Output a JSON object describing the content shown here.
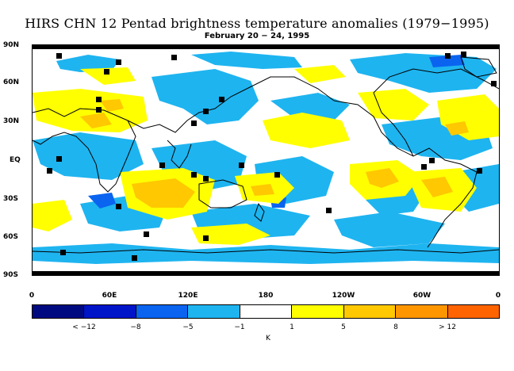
{
  "title": "HIRS CHN 12 Pentad brightness temperature anomalies (1979−1995)",
  "subtitle": "February 20 − 24, 1995",
  "lat_labels": [
    "90N",
    "60N",
    "30N",
    "EQ",
    "30S",
    "60S",
    "90S"
  ],
  "lon_labels": [
    "0",
    "60E",
    "120E",
    "180",
    "120W",
    "60W",
    "0"
  ],
  "colorbar": {
    "colors": [
      "#000a80",
      "#0014c8",
      "#0a64f0",
      "#1eb4f0",
      "#ffffff",
      "#ffff00",
      "#ffc800",
      "#ff9600",
      "#ff6400"
    ],
    "labels": [
      "< −12",
      "−8",
      "−5",
      "−1",
      "1",
      "5",
      "8",
      "> 12"
    ],
    "unit": "K"
  },
  "colors": {
    "anomaly_blue": "#1eb4f0",
    "anomaly_midblue": "#0a64f0",
    "anomaly_yellow": "#ffff00",
    "anomaly_orange": "#ffc800",
    "coast": "#000000",
    "missing": "#000000"
  }
}
